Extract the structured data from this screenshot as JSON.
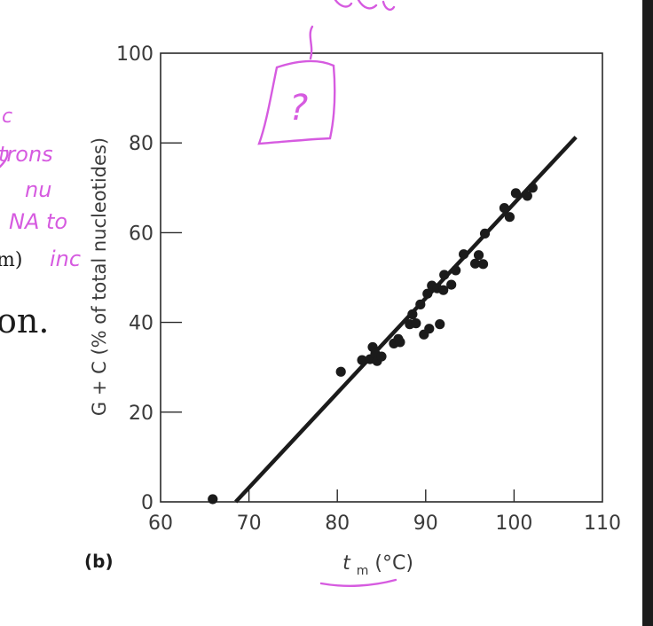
{
  "background_text": {
    "line1_suffix": "m)",
    "line2_suffix": "on."
  },
  "chart_data": {
    "type": "scatter",
    "panel_label": "(b)",
    "title": "",
    "xlabel_main": "t",
    "xlabel_sub": "m",
    "xlabel_unit": " (°C)",
    "ylabel": "G + C (% of total nucleotides)",
    "xlim": [
      60,
      110
    ],
    "ylim": [
      0,
      100
    ],
    "x_ticks": [
      60,
      70,
      80,
      90,
      100,
      110
    ],
    "y_ticks": [
      0,
      20,
      40,
      60,
      80,
      100
    ],
    "grid": false,
    "points": [
      [
        65.9,
        0.6
      ],
      [
        80.4,
        29.0
      ],
      [
        82.8,
        31.6
      ],
      [
        83.7,
        31.8
      ],
      [
        84.0,
        34.5
      ],
      [
        84.3,
        33.0
      ],
      [
        84.5,
        31.4
      ],
      [
        85.0,
        32.4
      ],
      [
        86.4,
        35.3
      ],
      [
        86.9,
        36.3
      ],
      [
        87.1,
        35.6
      ],
      [
        88.2,
        39.6
      ],
      [
        88.5,
        41.8
      ],
      [
        88.9,
        39.8
      ],
      [
        89.4,
        44.0
      ],
      [
        89.8,
        37.3
      ],
      [
        90.2,
        46.4
      ],
      [
        90.4,
        38.6
      ],
      [
        90.7,
        48.2
      ],
      [
        91.3,
        47.6
      ],
      [
        91.6,
        39.6
      ],
      [
        92.0,
        47.2
      ],
      [
        92.1,
        50.6
      ],
      [
        92.9,
        48.4
      ],
      [
        93.4,
        51.6
      ],
      [
        94.3,
        55.2
      ],
      [
        95.6,
        53.1
      ],
      [
        96.0,
        55.0
      ],
      [
        96.5,
        53.0
      ],
      [
        96.7,
        59.8
      ],
      [
        98.9,
        65.5
      ],
      [
        99.5,
        63.5
      ],
      [
        100.2,
        68.8
      ],
      [
        101.5,
        68.2
      ],
      [
        102.1,
        70.0
      ]
    ],
    "fit_line": {
      "x": [
        68.5,
        107
      ],
      "y": [
        0,
        81.3
      ]
    }
  },
  "annotations": {
    "handwritten_snippets": [
      "c",
      "trons",
      "nu",
      "NA to",
      "inc"
    ],
    "handwritten_question": "?"
  },
  "colors": {
    "ink": "#1b1b1b",
    "axis": "#2a2a2a",
    "tick_label": "#3a3a3a",
    "handwriting": "#d65be0",
    "scrollbar": "#1c1c1c"
  }
}
